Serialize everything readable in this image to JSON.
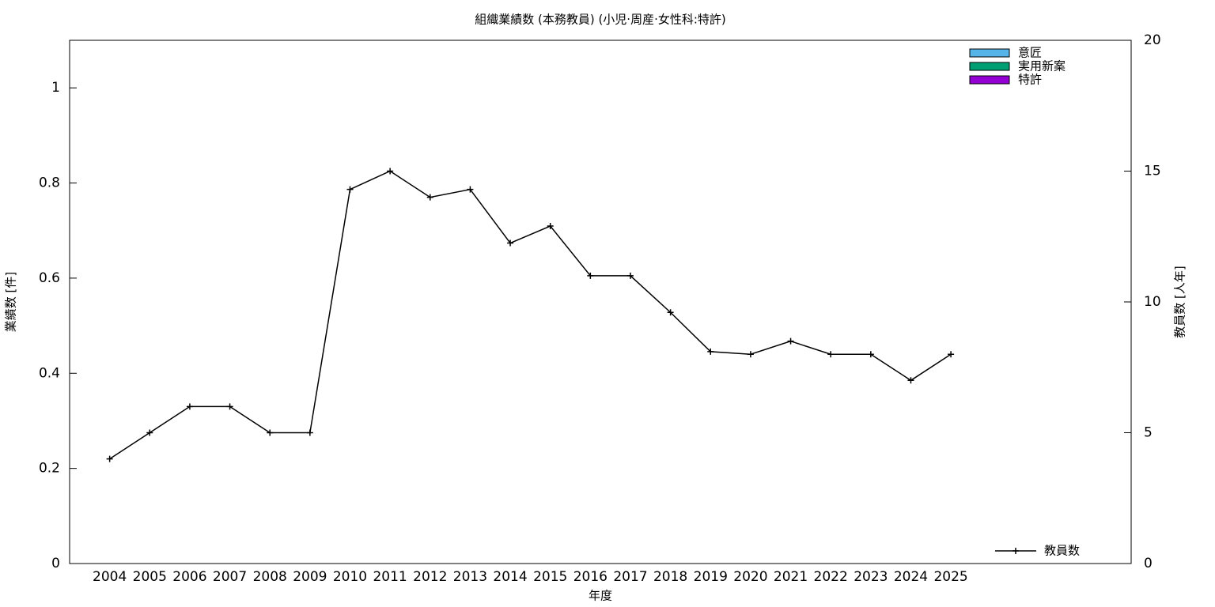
{
  "chart_data": {
    "type": "bar_line",
    "title": "組織業績数 (本務教員) (小児·周産·女性科:特許)",
    "x_label": "年度",
    "y_label": "業績数 [件]",
    "y2_label": "教員数 [人年]",
    "categories": [
      "2004",
      "2005",
      "2006",
      "2007",
      "2008",
      "2009",
      "2010",
      "2011",
      "2012",
      "2013",
      "2014",
      "2015",
      "2016",
      "2017",
      "2018",
      "2019",
      "2020",
      "2021",
      "2022",
      "2023",
      "2024",
      "2025"
    ],
    "series": [
      {
        "name": "意匠",
        "color": "#56b4e9",
        "type": "bar",
        "values": [
          0,
          0,
          0,
          0,
          0,
          0,
          0,
          0,
          0,
          0,
          0,
          0,
          0,
          0,
          0,
          0,
          0,
          0,
          0,
          0,
          0,
          0
        ]
      },
      {
        "name": "実用新案",
        "color": "#009e73",
        "type": "bar",
        "values": [
          0,
          0,
          0,
          0,
          0,
          0,
          0,
          0,
          0,
          0,
          0,
          0,
          0,
          0,
          0,
          0,
          0,
          0,
          0,
          0,
          0,
          0
        ]
      },
      {
        "name": "特許",
        "color": "#9400d3",
        "type": "bar",
        "values": [
          0,
          0,
          0,
          0,
          0,
          0,
          0,
          0,
          0,
          0,
          0,
          0,
          0,
          0,
          0,
          0,
          0,
          0,
          0,
          0,
          0,
          0
        ]
      },
      {
        "name": "教員数",
        "color": "#000000",
        "type": "line",
        "axis": "y2",
        "values": [
          4,
          5,
          6,
          6,
          5,
          5,
          14.3,
          15,
          14,
          14.3,
          12.25,
          12.9,
          11,
          11,
          9.6,
          8.1,
          8,
          8.5,
          8,
          8,
          7,
          8
        ]
      }
    ],
    "ylim": [
      0,
      1.1
    ],
    "yticks": [
      0,
      0.2,
      0.4,
      0.6,
      0.8,
      1
    ],
    "y2lim": [
      0,
      20
    ],
    "y2ticks": [
      0,
      5,
      10,
      15,
      20
    ],
    "bar_legend": "top-right",
    "line_legend": "bottom-right"
  }
}
